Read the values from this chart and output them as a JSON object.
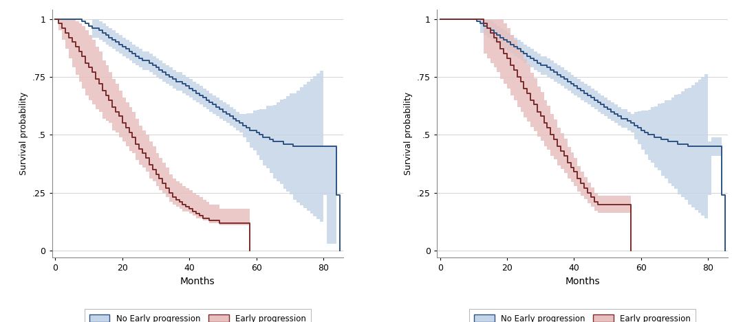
{
  "blue_color": "#2d5282",
  "blue_fill": "#c5d5e8",
  "red_color": "#7a2a2a",
  "red_fill": "#e8c0c0",
  "background": "#ffffff",
  "ylabel": "Survival probability",
  "xlabel": "Months",
  "yticks": [
    0,
    0.25,
    0.5,
    0.75,
    1
  ],
  "ytick_labels": [
    "0",
    ".25",
    ".5",
    ".75",
    "1"
  ],
  "xticks": [
    0,
    20,
    40,
    60,
    80
  ],
  "xlim": [
    -1,
    86
  ],
  "ylim": [
    -0.03,
    1.04
  ],
  "legend_labels": [
    "No Early progression",
    "Early progression"
  ]
}
